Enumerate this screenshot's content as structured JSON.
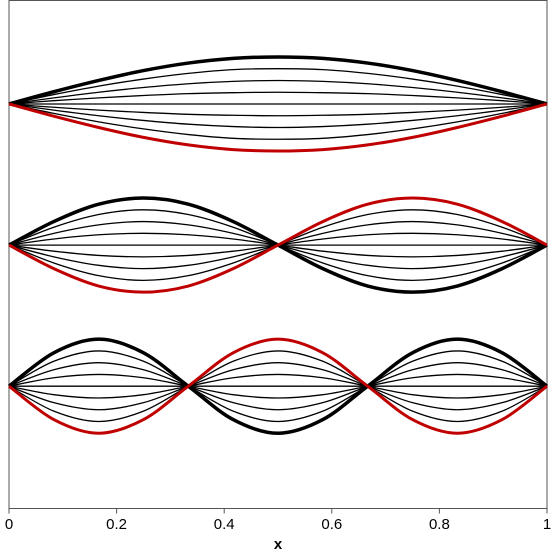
{
  "chart_data": {
    "type": "line",
    "x_label": "x",
    "xlim": [
      0,
      1
    ],
    "xticks": [
      0,
      0.2,
      0.4,
      0.6,
      0.8,
      1
    ],
    "ylim": [
      0,
      10.8
    ],
    "x": [
      0,
      0.0833,
      0.1667,
      0.25,
      0.3333,
      0.4167,
      0.5,
      0.5833,
      0.6667,
      0.75,
      0.8333,
      0.9167,
      1
    ],
    "series": [
      {
        "color": "#000000",
        "line_width": 3.5,
        "values": [
          8.6,
          8.86,
          9.1,
          9.31,
          9.47,
          9.57,
          9.6,
          9.57,
          9.47,
          9.31,
          9.1,
          8.86,
          8.6
        ]
      },
      {
        "color": "#000000",
        "line_width": 1.3,
        "values": [
          8.6,
          8.8,
          8.98,
          9.13,
          9.25,
          9.33,
          9.35,
          9.33,
          9.25,
          9.13,
          8.98,
          8.8,
          8.6
        ]
      },
      {
        "color": "#000000",
        "line_width": 1.3,
        "values": [
          8.6,
          8.73,
          8.85,
          8.95,
          9.03,
          9.08,
          9.1,
          9.08,
          9.03,
          8.95,
          8.85,
          8.73,
          8.6
        ]
      },
      {
        "color": "#000000",
        "line_width": 1.3,
        "values": [
          8.6,
          8.67,
          8.73,
          8.78,
          8.82,
          8.84,
          8.85,
          8.84,
          8.82,
          8.78,
          8.73,
          8.67,
          8.6
        ]
      },
      {
        "color": "#000000",
        "line_width": 1.3,
        "values": [
          8.6,
          8.6,
          8.6,
          8.6,
          8.6,
          8.6,
          8.6,
          8.6,
          8.6,
          8.6,
          8.6,
          8.6,
          8.6
        ]
      },
      {
        "color": "#000000",
        "line_width": 1.3,
        "values": [
          8.6,
          8.53,
          8.47,
          8.42,
          8.38,
          8.36,
          8.35,
          8.36,
          8.38,
          8.42,
          8.47,
          8.53,
          8.6
        ]
      },
      {
        "color": "#000000",
        "line_width": 1.3,
        "values": [
          8.6,
          8.47,
          8.35,
          8.25,
          8.17,
          8.12,
          8.1,
          8.12,
          8.17,
          8.25,
          8.35,
          8.47,
          8.6
        ]
      },
      {
        "color": "#000000",
        "line_width": 1.3,
        "values": [
          8.6,
          8.4,
          8.22,
          8.07,
          7.95,
          7.87,
          7.85,
          7.87,
          7.95,
          8.07,
          8.22,
          8.4,
          8.6
        ]
      },
      {
        "color": "#c00000",
        "line_width": 3,
        "values": [
          8.6,
          8.34,
          8.1,
          7.89,
          7.73,
          7.63,
          7.6,
          7.63,
          7.73,
          7.89,
          8.1,
          8.34,
          8.6
        ]
      },
      {
        "color": "#000000",
        "line_width": 3.5,
        "values": [
          5.6,
          6.1,
          6.47,
          6.6,
          6.47,
          6.1,
          5.6,
          5.1,
          4.73,
          4.6,
          4.73,
          5.1,
          5.6
        ]
      },
      {
        "color": "#000000",
        "line_width": 1.3,
        "values": [
          5.6,
          5.98,
          6.25,
          6.35,
          6.25,
          5.98,
          5.6,
          5.22,
          4.95,
          4.85,
          4.95,
          5.22,
          5.6
        ]
      },
      {
        "color": "#000000",
        "line_width": 1.3,
        "values": [
          5.6,
          5.85,
          6.03,
          6.1,
          6.03,
          5.85,
          5.6,
          5.35,
          5.17,
          5.1,
          5.17,
          5.35,
          5.6
        ]
      },
      {
        "color": "#000000",
        "line_width": 1.3,
        "values": [
          5.6,
          5.73,
          5.82,
          5.85,
          5.82,
          5.73,
          5.6,
          5.47,
          5.38,
          5.35,
          5.38,
          5.47,
          5.6
        ]
      },
      {
        "color": "#000000",
        "line_width": 1.3,
        "values": [
          5.6,
          5.6,
          5.6,
          5.6,
          5.6,
          5.6,
          5.6,
          5.6,
          5.6,
          5.6,
          5.6,
          5.6,
          5.6
        ]
      },
      {
        "color": "#000000",
        "line_width": 1.3,
        "values": [
          5.6,
          5.47,
          5.38,
          5.35,
          5.38,
          5.47,
          5.6,
          5.73,
          5.82,
          5.85,
          5.82,
          5.73,
          5.6
        ]
      },
      {
        "color": "#000000",
        "line_width": 1.3,
        "values": [
          5.6,
          5.35,
          5.17,
          5.1,
          5.17,
          5.35,
          5.6,
          5.85,
          6.03,
          6.1,
          6.03,
          5.85,
          5.6
        ]
      },
      {
        "color": "#000000",
        "line_width": 1.3,
        "values": [
          5.6,
          5.22,
          4.95,
          4.85,
          4.95,
          5.22,
          5.6,
          5.98,
          6.25,
          6.35,
          6.25,
          5.98,
          5.6
        ]
      },
      {
        "color": "#c00000",
        "line_width": 3,
        "values": [
          5.6,
          5.1,
          4.73,
          4.6,
          4.73,
          5.1,
          5.6,
          6.1,
          6.47,
          6.6,
          6.47,
          6.1,
          5.6
        ]
      },
      {
        "color": "#000000",
        "line_width": 3.5,
        "values": [
          2.6,
          3.31,
          3.6,
          3.31,
          2.6,
          1.89,
          1.6,
          1.89,
          2.6,
          3.31,
          3.6,
          3.31,
          2.6
        ]
      },
      {
        "color": "#000000",
        "line_width": 1.3,
        "values": [
          2.6,
          3.13,
          3.35,
          3.13,
          2.6,
          2.07,
          1.85,
          2.07,
          2.6,
          3.13,
          3.35,
          3.13,
          2.6
        ]
      },
      {
        "color": "#000000",
        "line_width": 1.3,
        "values": [
          2.6,
          2.95,
          3.1,
          2.95,
          2.6,
          2.25,
          2.1,
          2.25,
          2.6,
          2.95,
          3.1,
          2.95,
          2.6
        ]
      },
      {
        "color": "#000000",
        "line_width": 1.3,
        "values": [
          2.6,
          2.78,
          2.85,
          2.78,
          2.6,
          2.42,
          2.35,
          2.42,
          2.6,
          2.78,
          2.85,
          2.78,
          2.6
        ]
      },
      {
        "color": "#000000",
        "line_width": 1.3,
        "values": [
          2.6,
          2.6,
          2.6,
          2.6,
          2.6,
          2.6,
          2.6,
          2.6,
          2.6,
          2.6,
          2.6,
          2.6,
          2.6
        ]
      },
      {
        "color": "#000000",
        "line_width": 1.3,
        "values": [
          2.6,
          2.42,
          2.35,
          2.42,
          2.6,
          2.78,
          2.85,
          2.78,
          2.6,
          2.42,
          2.35,
          2.42,
          2.6
        ]
      },
      {
        "color": "#000000",
        "line_width": 1.3,
        "values": [
          2.6,
          2.25,
          2.1,
          2.25,
          2.6,
          2.95,
          3.1,
          2.95,
          2.6,
          2.25,
          2.1,
          2.25,
          2.6
        ]
      },
      {
        "color": "#000000",
        "line_width": 1.3,
        "values": [
          2.6,
          2.07,
          1.85,
          2.07,
          2.6,
          3.13,
          3.35,
          3.13,
          2.6,
          2.07,
          1.85,
          2.07,
          2.6
        ]
      },
      {
        "color": "#c00000",
        "line_width": 3,
        "values": [
          2.6,
          1.89,
          1.6,
          1.89,
          2.6,
          3.31,
          3.6,
          3.31,
          2.6,
          1.89,
          1.6,
          1.89,
          2.6
        ]
      }
    ]
  }
}
